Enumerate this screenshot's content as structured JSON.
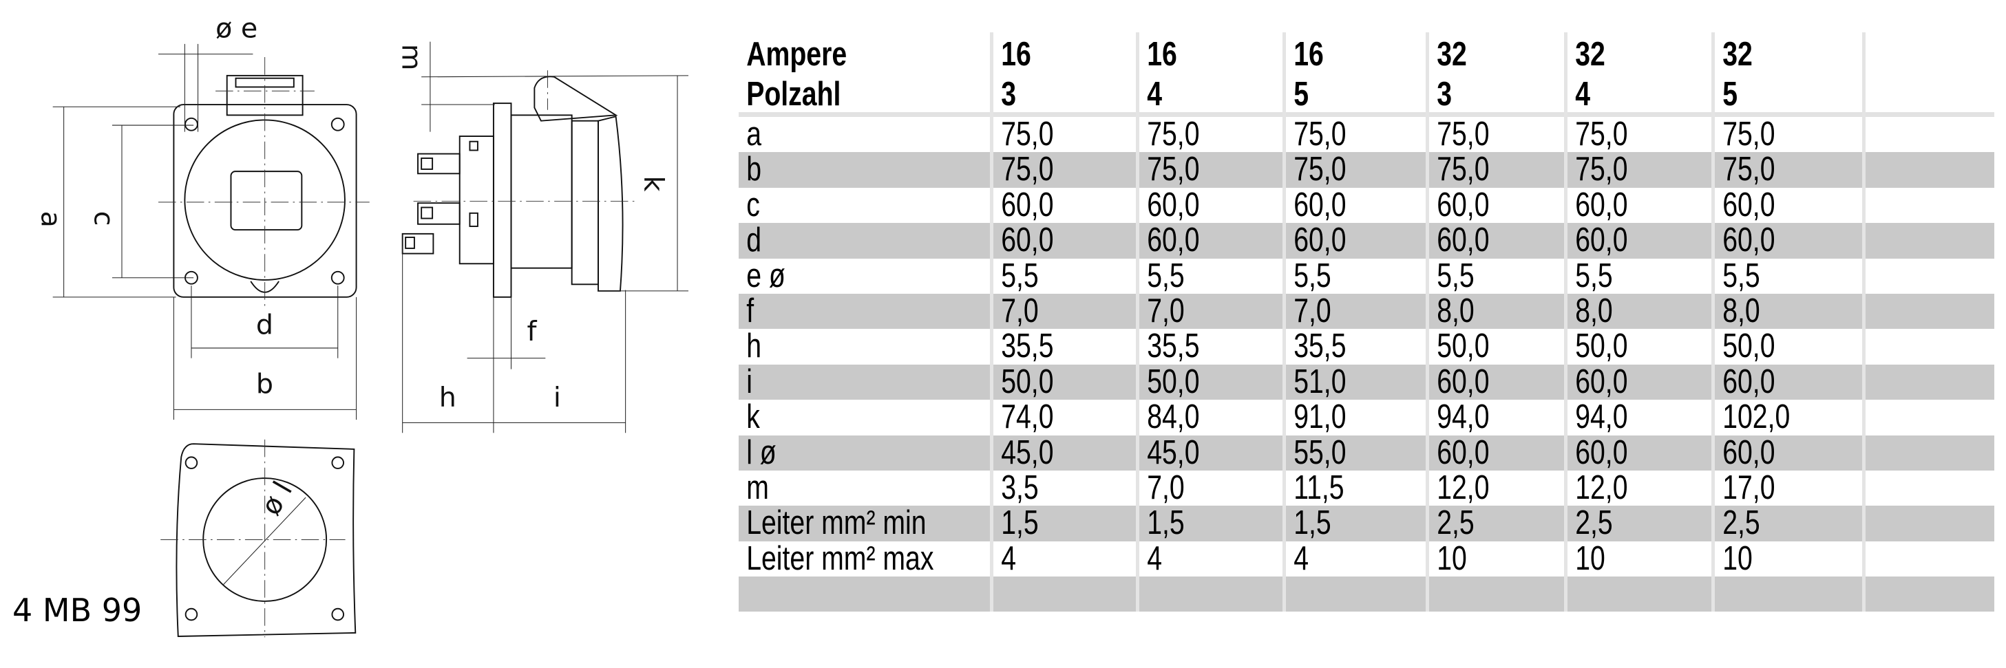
{
  "drawing": {
    "labels": {
      "a": "a",
      "b": "b",
      "c": "c",
      "d": "d",
      "e": "ø e",
      "f": "f",
      "h": "h",
      "i": "i",
      "k": "k",
      "l": "ø l",
      "m": "m"
    },
    "model": "4 MB 99"
  },
  "table": {
    "header": {
      "row1_label": "Ampere",
      "row2_label": "Polzahl",
      "columns": [
        {
          "ampere": "16",
          "polzahl": "3"
        },
        {
          "ampere": "16",
          "polzahl": "4"
        },
        {
          "ampere": "16",
          "polzahl": "5"
        },
        {
          "ampere": "32",
          "polzahl": "3"
        },
        {
          "ampere": "32",
          "polzahl": "4"
        },
        {
          "ampere": "32",
          "polzahl": "5"
        }
      ]
    },
    "rows": [
      {
        "label": "a",
        "values": [
          "75,0",
          "75,0",
          "75,0",
          "75,0",
          "75,0",
          "75,0"
        ]
      },
      {
        "label": "b",
        "values": [
          "75,0",
          "75,0",
          "75,0",
          "75,0",
          "75,0",
          "75,0"
        ]
      },
      {
        "label": "c",
        "values": [
          "60,0",
          "60,0",
          "60,0",
          "60,0",
          "60,0",
          "60,0"
        ]
      },
      {
        "label": "d",
        "values": [
          "60,0",
          "60,0",
          "60,0",
          "60,0",
          "60,0",
          "60,0"
        ]
      },
      {
        "label": "e ø",
        "values": [
          "5,5",
          "5,5",
          "5,5",
          "5,5",
          "5,5",
          "5,5"
        ]
      },
      {
        "label": "f",
        "values": [
          "7,0",
          "7,0",
          "7,0",
          "8,0",
          "8,0",
          "8,0"
        ]
      },
      {
        "label": "h",
        "values": [
          "35,5",
          "35,5",
          "35,5",
          "50,0",
          "50,0",
          "50,0"
        ]
      },
      {
        "label": "i",
        "values": [
          "50,0",
          "50,0",
          "51,0",
          "60,0",
          "60,0",
          "60,0"
        ]
      },
      {
        "label": "k",
        "values": [
          "74,0",
          "84,0",
          "91,0",
          "94,0",
          "94,0",
          "102,0"
        ]
      },
      {
        "label": "l ø",
        "values": [
          "45,0",
          "45,0",
          "55,0",
          "60,0",
          "60,0",
          "60,0"
        ]
      },
      {
        "label": "m",
        "values": [
          "3,5",
          "7,0",
          "11,5",
          "12,0",
          "12,0",
          "17,0"
        ]
      },
      {
        "label": "Leiter mm² min",
        "values": [
          "1,5",
          "1,5",
          "1,5",
          "2,5",
          "2,5",
          "2,5"
        ]
      },
      {
        "label": "Leiter mm² max",
        "values": [
          "4",
          "4",
          "4",
          "10",
          "10",
          "10"
        ]
      },
      {
        "label": "",
        "values": [
          "",
          "",
          "",
          "",
          "",
          ""
        ]
      }
    ],
    "stripe_color": "#c9c9c9",
    "grid_color": "#e4e4e4"
  }
}
